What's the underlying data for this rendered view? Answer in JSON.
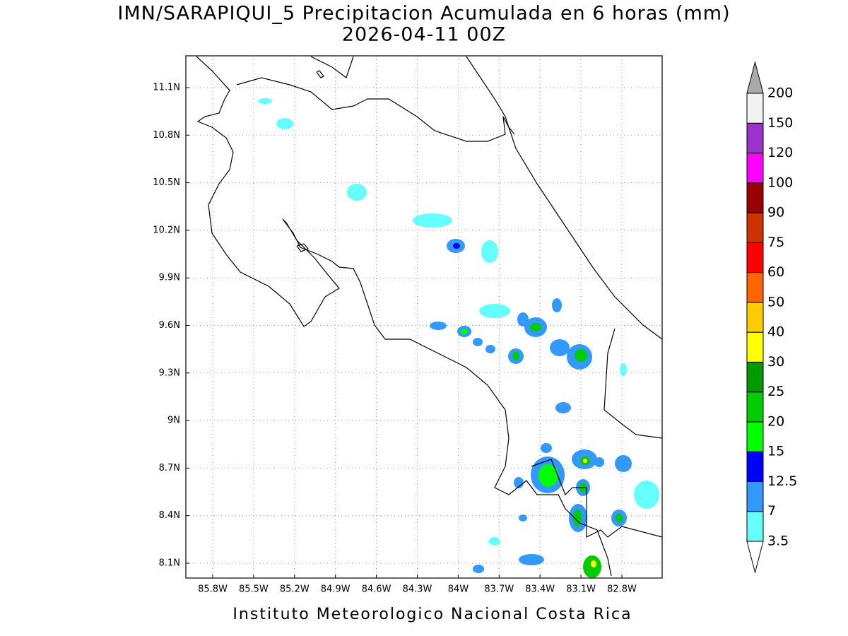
{
  "title": "IMN/SARAPIQUI_5 Precipitacion Acumulada en 6 horas (mm)",
  "subtitle": "2026-04-11 00Z",
  "x_ticks": [
    "85.8W",
    "85.5W",
    "85.2W",
    "84.9W",
    "84.6W",
    "84.3W",
    "84W",
    "83.7W",
    "83.4W",
    "83.1W",
    "82.8W"
  ],
  "y_ticks": [
    "11.1N",
    "10.8N",
    "10.5N",
    "10.2N",
    "9.9N",
    "9.6N",
    "9.3N",
    "9N",
    "8.7N",
    "8.4N",
    "8.1N"
  ],
  "colorbar": {
    "labels": [
      3.5,
      7,
      12.5,
      15,
      20,
      25,
      30,
      40,
      50,
      60,
      75,
      90,
      100,
      120,
      150,
      200
    ],
    "colors": [
      "#ffffff",
      "#66ffff",
      "#3399ff",
      "#0000ff",
      "#00ff00",
      "#00cc00",
      "#009900",
      "#ffff00",
      "#ffcc00",
      "#ff6600",
      "#ff0000",
      "#cc3300",
      "#990000",
      "#ff00ff",
      "#9933cc",
      "#f2f2f2",
      "#aaaaaa"
    ]
  },
  "footer": "Instituto Meteorologico Nacional Costa Rica"
}
